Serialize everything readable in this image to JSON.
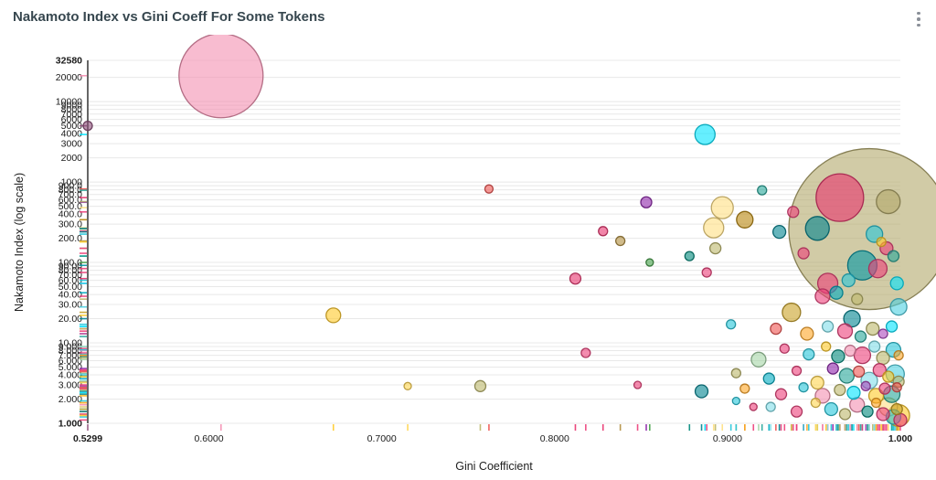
{
  "header": {
    "menu_icon": "kebab-menu-icon"
  },
  "chart_data": {
    "type": "scatter",
    "subtype": "bubble",
    "title": "Nakamoto Index vs Gini Coeff For Some Tokens",
    "xlabel": "Gini Coefficient",
    "ylabel": "Nakamoto Index (log scale)",
    "x_scale": "linear",
    "y_scale": "log",
    "xlim": [
      0.5299,
      1.0
    ],
    "ylim": [
      1.0,
      32580
    ],
    "grid": "horizontal",
    "legend": "none",
    "colors": {
      "background": "#ffffff",
      "grid": "#e8e8e8",
      "axis": "#333333",
      "tick_text": "#1a1a1a",
      "title_text": "#37474f"
    },
    "x_ticks": [
      {
        "v": 0.5299,
        "label": "0.5299",
        "b": 1
      },
      {
        "v": 0.6,
        "label": "0.6000"
      },
      {
        "v": 0.7,
        "label": "0.7000"
      },
      {
        "v": 0.8,
        "label": "0.8000"
      },
      {
        "v": 0.9,
        "label": "0.9000"
      },
      {
        "v": 1.0,
        "label": "1.000",
        "b": 1
      }
    ],
    "y_ticks": [
      {
        "v": 1,
        "label": "1.000",
        "b": 1
      },
      {
        "v": 2,
        "label": "2.000"
      },
      {
        "v": 3,
        "label": "3.000"
      },
      {
        "v": 4,
        "label": "4.000"
      },
      {
        "v": 5,
        "label": "5.000"
      },
      {
        "v": 6,
        "label": "6.000"
      },
      {
        "v": 7,
        "label": "7.000"
      },
      {
        "v": 8,
        "label": "8.000"
      },
      {
        "v": 9,
        "label": "9.000"
      },
      {
        "v": 10,
        "label": "10.00"
      },
      {
        "v": 20,
        "label": "20.00"
      },
      {
        "v": 30,
        "label": "30.00"
      },
      {
        "v": 40,
        "label": "40.00"
      },
      {
        "v": 50,
        "label": "50.00"
      },
      {
        "v": 60,
        "label": "60.00"
      },
      {
        "v": 70,
        "label": "70.00"
      },
      {
        "v": 80,
        "label": "80.00"
      },
      {
        "v": 90,
        "label": "90.00"
      },
      {
        "v": 100,
        "label": "100.0"
      },
      {
        "v": 200,
        "label": "200.0"
      },
      {
        "v": 300,
        "label": "300.0"
      },
      {
        "v": 400,
        "label": "400.0"
      },
      {
        "v": 500,
        "label": "500.0"
      },
      {
        "v": 600,
        "label": "600.0"
      },
      {
        "v": 700,
        "label": "700.0"
      },
      {
        "v": 800,
        "label": "800.0"
      },
      {
        "v": 900,
        "label": "900.0"
      },
      {
        "v": 1000,
        "label": "1000"
      },
      {
        "v": 2000,
        "label": "2000"
      },
      {
        "v": 3000,
        "label": "3000"
      },
      {
        "v": 4000,
        "label": "4000"
      },
      {
        "v": 5000,
        "label": "5000"
      },
      {
        "v": 6000,
        "label": "6000"
      },
      {
        "v": 7000,
        "label": "7000"
      },
      {
        "v": 8000,
        "label": "8000"
      },
      {
        "v": 9000,
        "label": "9000"
      },
      {
        "v": 10000,
        "label": "10000"
      },
      {
        "v": 20000,
        "label": "20000"
      },
      {
        "v": 32580,
        "label": "32580",
        "b": 1
      }
    ],
    "points_format": [
      "gini_coefficient",
      "nakamoto_index",
      "radius_px",
      "color"
    ],
    "points": [
      [
        0.607,
        21000,
        46,
        "#f48fb1"
      ],
      [
        0.5299,
        5000,
        5,
        "#8e4f7a"
      ],
      [
        0.887,
        3900,
        11,
        "#00e5ff"
      ],
      [
        0.762,
        820,
        4.5,
        "#ef5350"
      ],
      [
        0.853,
        560,
        6,
        "#8e24aa"
      ],
      [
        0.828,
        245,
        5,
        "#e8336e"
      ],
      [
        0.812,
        63,
        6,
        "#e8336e"
      ],
      [
        0.838,
        185,
        5,
        "#b08d3e"
      ],
      [
        0.855,
        100,
        4,
        "#43a047"
      ],
      [
        0.672,
        22,
        8,
        "#ffca28"
      ],
      [
        0.818,
        7.5,
        5,
        "#ec407a"
      ],
      [
        0.757,
        2.9,
        6,
        "#bdb76b"
      ],
      [
        0.715,
        2.9,
        4,
        "#ffd54f"
      ],
      [
        0.878,
        120,
        5,
        "#00897b"
      ],
      [
        0.888,
        75,
        5,
        "#ec407a"
      ],
      [
        0.893,
        150,
        6,
        "#bdb76b"
      ],
      [
        0.897,
        480,
        12,
        "#ffe082"
      ],
      [
        0.892,
        270,
        11,
        "#ffe082"
      ],
      [
        0.91,
        340,
        9,
        "#b8860b"
      ],
      [
        0.92,
        790,
        5,
        "#26a69a"
      ],
      [
        0.982,
        260,
        88,
        "#b3a86b"
      ],
      [
        0.965,
        640,
        26,
        "#e8336e"
      ],
      [
        0.993,
        570,
        13,
        "#b3a86b"
      ],
      [
        0.952,
        265,
        13,
        "#00838f"
      ],
      [
        0.985,
        225,
        9,
        "#26c6da"
      ],
      [
        0.938,
        425,
        6,
        "#ec407a"
      ],
      [
        0.93,
        240,
        7,
        "#00838f"
      ],
      [
        0.944,
        130,
        6,
        "#ec407a"
      ],
      [
        0.978,
        92,
        16,
        "#0097a7"
      ],
      [
        0.987,
        84,
        10,
        "#ec407a"
      ],
      [
        0.97,
        60,
        7,
        "#26c6da"
      ],
      [
        0.958,
        55,
        11,
        "#ec407a"
      ],
      [
        0.937,
        24,
        10,
        "#c9a227"
      ],
      [
        0.955,
        38,
        8,
        "#ec407a"
      ],
      [
        0.963,
        42,
        7,
        "#00acc1"
      ],
      [
        0.975,
        35,
        6,
        "#bdb76b"
      ],
      [
        0.972,
        20,
        9,
        "#00838f"
      ],
      [
        0.992,
        150,
        7,
        "#ec407a"
      ],
      [
        0.996,
        120,
        6,
        "#26a69a"
      ],
      [
        0.989,
        180,
        5,
        "#ffca28"
      ],
      [
        0.999,
        28,
        9,
        "#4dd0e1"
      ],
      [
        0.998,
        55,
        7,
        "#00e5ff"
      ],
      [
        0.902,
        17,
        5,
        "#26c6da"
      ],
      [
        0.928,
        15,
        6,
        "#ef5350"
      ],
      [
        0.946,
        13,
        7,
        "#ffa726"
      ],
      [
        0.958,
        16,
        6,
        "#80deea"
      ],
      [
        0.968,
        14,
        8,
        "#ec407a"
      ],
      [
        0.977,
        12,
        6,
        "#26a69a"
      ],
      [
        0.984,
        15,
        7,
        "#bdb76b"
      ],
      [
        0.99,
        13,
        5,
        "#ab47bc"
      ],
      [
        0.995,
        16,
        6,
        "#00e5ff"
      ],
      [
        0.918,
        6.2,
        8,
        "#a5d6a7"
      ],
      [
        0.933,
        8.5,
        5,
        "#ec407a"
      ],
      [
        0.947,
        7.2,
        6,
        "#26c6da"
      ],
      [
        0.957,
        9,
        5,
        "#ffca28"
      ],
      [
        0.964,
        6.8,
        7,
        "#00897b"
      ],
      [
        0.971,
        8,
        6,
        "#f48fb1"
      ],
      [
        0.978,
        7,
        9,
        "#ec407a"
      ],
      [
        0.985,
        9,
        6,
        "#80deea"
      ],
      [
        0.99,
        6.5,
        7,
        "#bdb76b"
      ],
      [
        0.996,
        8.2,
        8,
        "#26c6da"
      ],
      [
        0.999,
        7,
        5,
        "#ffa726"
      ],
      [
        0.905,
        4.2,
        5,
        "#bdb76b"
      ],
      [
        0.924,
        3.6,
        6,
        "#00acc1"
      ],
      [
        0.94,
        4.5,
        5,
        "#ec407a"
      ],
      [
        0.952,
        3.2,
        7,
        "#ffd54f"
      ],
      [
        0.961,
        4.8,
        6,
        "#8e24aa"
      ],
      [
        0.969,
        3.9,
        8,
        "#26a69a"
      ],
      [
        0.976,
        4.4,
        6,
        "#ef5350"
      ],
      [
        0.982,
        3.4,
        9,
        "#80deea"
      ],
      [
        0.988,
        4.6,
        7,
        "#ec407a"
      ],
      [
        0.993,
        3.8,
        6,
        "#ffca28"
      ],
      [
        0.997,
        4.1,
        10,
        "#4dd0e1"
      ],
      [
        0.999,
        3.3,
        6,
        "#bdb76b"
      ],
      [
        0.848,
        3.0,
        4,
        "#ec407a"
      ],
      [
        0.885,
        2.5,
        7,
        "#00838f"
      ],
      [
        0.91,
        2.7,
        5,
        "#ffa726"
      ],
      [
        0.931,
        2.3,
        6,
        "#ec407a"
      ],
      [
        0.944,
        2.8,
        5,
        "#26c6da"
      ],
      [
        0.955,
        2.2,
        8,
        "#f48fb1"
      ],
      [
        0.965,
        2.6,
        6,
        "#bdb76b"
      ],
      [
        0.973,
        2.4,
        7,
        "#00e5ff"
      ],
      [
        0.98,
        2.9,
        5,
        "#ab47bc"
      ],
      [
        0.986,
        2.2,
        8,
        "#ffca28"
      ],
      [
        0.991,
        2.7,
        6,
        "#ec407a"
      ],
      [
        0.995,
        2.3,
        9,
        "#26a69a"
      ],
      [
        0.998,
        2.8,
        5,
        "#ef5350"
      ],
      [
        0.905,
        1.9,
        4,
        "#26c6da"
      ],
      [
        0.915,
        1.6,
        4,
        "#ec407a"
      ],
      [
        0.925,
        1.6,
        5,
        "#80deea"
      ],
      [
        0.94,
        1.4,
        6,
        "#ec407a"
      ],
      [
        0.951,
        1.8,
        5,
        "#ffd54f"
      ],
      [
        0.96,
        1.5,
        7,
        "#26c6da"
      ],
      [
        0.968,
        1.3,
        6,
        "#bdb76b"
      ],
      [
        0.975,
        1.7,
        8,
        "#f48fb1"
      ],
      [
        0.981,
        1.4,
        6,
        "#00897b"
      ],
      [
        0.986,
        1.8,
        5,
        "#ffa726"
      ],
      [
        0.99,
        1.3,
        7,
        "#ec407a"
      ],
      [
        0.993,
        1.6,
        10,
        "#ffe082"
      ],
      [
        0.996,
        1.2,
        8,
        "#26c6da"
      ],
      [
        0.998,
        1.5,
        6,
        "#c9a227"
      ],
      [
        0.999,
        1.25,
        12,
        "#ffca28"
      ],
      [
        1.0,
        1.1,
        7,
        "#ec407a"
      ]
    ]
  }
}
